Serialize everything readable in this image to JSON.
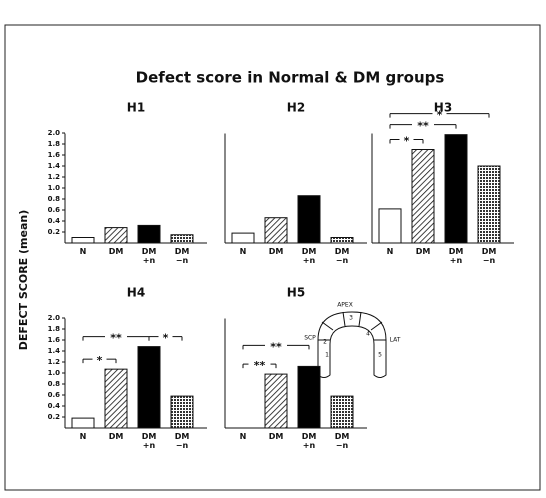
{
  "title": "Defect score in Normal & DM groups",
  "ylabel": "DEFECT SCORE (mean)",
  "chart_data": [
    {
      "type": "bar",
      "title": "H1",
      "categories": [
        "N",
        "DM",
        "DM +n",
        "DM −n"
      ],
      "values": [
        0.1,
        0.28,
        0.32,
        0.15
      ],
      "fills": [
        "white",
        "hatch",
        "black",
        "crosshatch"
      ],
      "ylim": [
        0,
        2.1
      ],
      "yticks": [
        0.2,
        0.4,
        0.6,
        0.8,
        {
          "value": 1,
          "label": "1.0"
        },
        1.2,
        1.4,
        1.6,
        1.8,
        {
          "value": 2,
          "label": "2.0"
        }
      ]
    },
    {
      "type": "bar",
      "title": "H2",
      "categories": [
        "N",
        "DM",
        "DM +n",
        "DM −n"
      ],
      "values": [
        0.18,
        0.46,
        0.86,
        0.1
      ],
      "fills": [
        "white",
        "hatch",
        "black",
        "crosshatch"
      ],
      "ylim": [
        0,
        2.1
      ]
    },
    {
      "type": "bar",
      "title": "H3",
      "categories": [
        "N",
        "DM",
        "DM +n",
        "DM −n"
      ],
      "values": [
        0.62,
        1.7,
        1.97,
        1.4
      ],
      "fills": [
        "white",
        "hatch",
        "black",
        "crosshatch"
      ],
      "ylim": [
        0,
        2.1
      ],
      "annotations": [
        {
          "text": "*",
          "between": [
            "N",
            "DM"
          ]
        },
        {
          "text": "**",
          "between": [
            "N",
            "DM +n"
          ]
        },
        {
          "text": "*",
          "between": [
            "N",
            "DM −n"
          ]
        }
      ]
    },
    {
      "type": "bar",
      "title": "H4",
      "categories": [
        "N",
        "DM",
        "DM +n",
        "DM −n"
      ],
      "values": [
        0.18,
        1.07,
        1.48,
        0.58
      ],
      "fills": [
        "white",
        "hatch",
        "black",
        "crosshatch"
      ],
      "ylim": [
        0,
        2.1
      ],
      "yticks": [
        0.2,
        0.4,
        0.6,
        0.8,
        {
          "value": 1,
          "label": "1.0"
        },
        1.2,
        1.4,
        1.6,
        1.8,
        {
          "value": 2,
          "label": "2.0"
        }
      ],
      "annotations": [
        {
          "text": "*",
          "between": [
            "N",
            "DM"
          ]
        },
        {
          "text": "**",
          "between": [
            "N",
            "DM +n"
          ]
        },
        {
          "text": "*",
          "between": [
            "DM +n",
            "DM −n"
          ]
        }
      ]
    },
    {
      "type": "bar",
      "title": "H5",
      "categories": [
        "N",
        "DM",
        "DM +n",
        "DM −n"
      ],
      "values": [
        0,
        0.98,
        1.12,
        0.58
      ],
      "fills": [
        "white",
        "hatch",
        "black",
        "crosshatch"
      ],
      "ylim": [
        0,
        2.1
      ],
      "annotations": [
        {
          "text": "**",
          "between": [
            "N",
            "DM"
          ]
        },
        {
          "text": "**",
          "between": [
            "N",
            "DM +n"
          ]
        }
      ]
    }
  ],
  "diagram": {
    "labels": [
      "APEX",
      "SCP",
      "LAT",
      "1",
      "2",
      "3",
      "4",
      "5"
    ]
  }
}
